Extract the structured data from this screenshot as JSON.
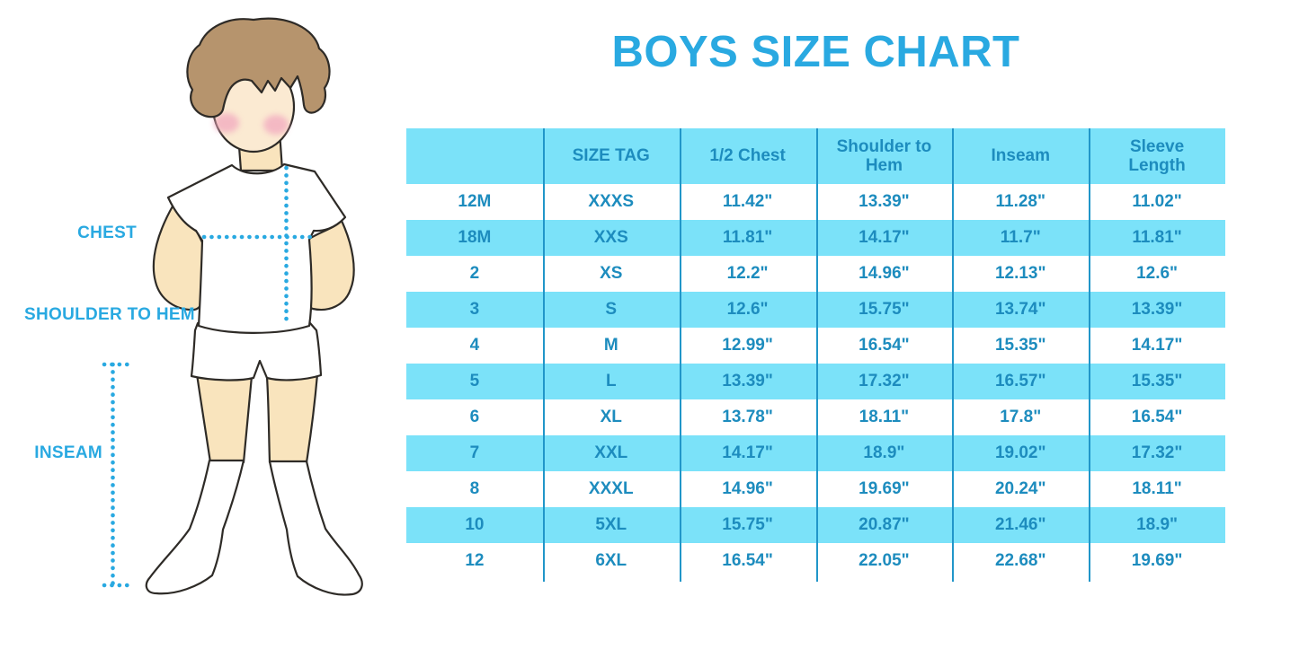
{
  "title": "BOYS SIZE CHART",
  "figure": {
    "labels": {
      "chest": "CHEST",
      "shoulder_to_hem": "SHOULDER TO HEM",
      "inseam": "INSEAM"
    },
    "illustration": "boy standing with hands on hips, white t-shirt, white shorts, white knee socks, dotted measurement guides"
  },
  "chart_data": {
    "type": "table",
    "title": "BOYS SIZE CHART",
    "columns": [
      "",
      "SIZE TAG",
      "1/2 Chest",
      "Shoulder to Hem",
      "Inseam",
      "Sleeve Length"
    ],
    "rows": [
      [
        "12M",
        "XXXS",
        "11.42\"",
        "13.39\"",
        "11.28\"",
        "11.02\""
      ],
      [
        "18M",
        "XXS",
        "11.81\"",
        "14.17\"",
        "11.7\"",
        "11.81\""
      ],
      [
        "2",
        "XS",
        "12.2\"",
        "14.96\"",
        "12.13\"",
        "12.6\""
      ],
      [
        "3",
        "S",
        "12.6\"",
        "15.75\"",
        "13.74\"",
        "13.39\""
      ],
      [
        "4",
        "M",
        "12.99\"",
        "16.54\"",
        "15.35\"",
        "14.17\""
      ],
      [
        "5",
        "L",
        "13.39\"",
        "17.32\"",
        "16.57\"",
        "15.35\""
      ],
      [
        "6",
        "XL",
        "13.78\"",
        "18.11\"",
        "17.8\"",
        "16.54\""
      ],
      [
        "7",
        "XXL",
        "14.17\"",
        "18.9\"",
        "19.02\"",
        "17.32\""
      ],
      [
        "8",
        "XXXL",
        "14.96\"",
        "19.69\"",
        "20.24\"",
        "18.11\""
      ],
      [
        "10",
        "5XL",
        "15.75\"",
        "20.87\"",
        "21.46\"",
        "18.9\""
      ],
      [
        "12",
        "6XL",
        "16.54\"",
        "22.05\"",
        "22.68\"",
        "19.69\""
      ]
    ],
    "striping": "header cyan; data rows alternate white then cyan starting with white",
    "grid": "vertical column dividers only, no horizontal borders",
    "legend_position": "none"
  },
  "colors": {
    "accent_blue": "#29A9E1",
    "table_text": "#1D8CBE",
    "stripe_cyan": "#7BE2F9",
    "divider_blue": "#2196C9",
    "skin": "#F9E4BD",
    "face": "#FBEAD2",
    "blush": "#F2A9BF",
    "hair": "#B6946D",
    "line_dark": "#2E2B27"
  }
}
